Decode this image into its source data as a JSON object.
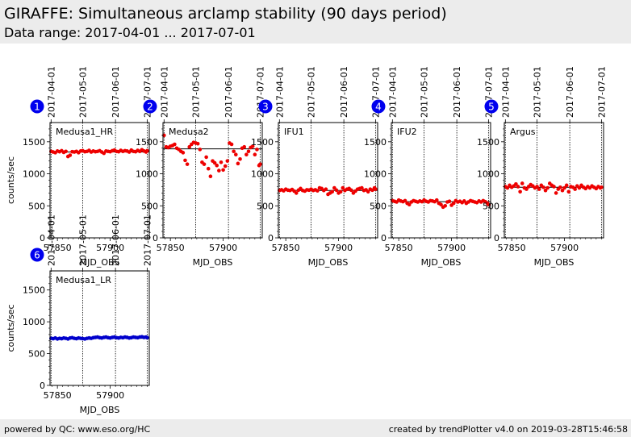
{
  "header": {
    "title": "GIRAFFE: Simultaneous arclamp stability (90 days period)",
    "subtitle": "Data range: 2017-04-01 ... 2017-07-01"
  },
  "footer": {
    "left": "powered by QC: www.eso.org/HC",
    "right": "created by trendPlotter v4.0 on 2019-03-28T15:46:58"
  },
  "colors": {
    "red": "#ee0000",
    "blue": "#0000cc",
    "badge": "#0000ee"
  },
  "chart_data": [
    {
      "type": "scatter",
      "id": 1,
      "label": "Medusa1_HR",
      "color": "red",
      "xlabel": "MJD_OBS",
      "ylabel": "counts/sec",
      "xlim": [
        57843,
        57937
      ],
      "ylim": [
        0,
        1800
      ],
      "xticks": [
        57850,
        57900
      ],
      "yticks": [
        0,
        500,
        1000,
        1500
      ],
      "date_ticks": [
        "2017-04-01",
        "2017-05-01",
        "2017-06-01",
        "2017-07-01"
      ],
      "date_ticks_mjd": [
        57844,
        57874,
        57905,
        57935
      ],
      "reference": 1340,
      "x": [
        57844,
        57846,
        57848,
        57850,
        57852,
        57854,
        57856,
        57858,
        57860,
        57862,
        57864,
        57866,
        57868,
        57870,
        57872,
        57874,
        57876,
        57878,
        57880,
        57882,
        57884,
        57886,
        57888,
        57890,
        57892,
        57894,
        57896,
        57898,
        57900,
        57902,
        57904,
        57906,
        57908,
        57910,
        57912,
        57914,
        57916,
        57918,
        57920,
        57922,
        57924,
        57926,
        57928,
        57930,
        57932,
        57934,
        57935
      ],
      "y": [
        1350,
        1340,
        1330,
        1355,
        1345,
        1360,
        1335,
        1350,
        1270,
        1290,
        1345,
        1340,
        1350,
        1330,
        1355,
        1360,
        1345,
        1350,
        1365,
        1340,
        1355,
        1345,
        1350,
        1360,
        1340,
        1320,
        1355,
        1350,
        1345,
        1360,
        1370,
        1350,
        1345,
        1365,
        1350,
        1360,
        1355,
        1340,
        1370,
        1350,
        1345,
        1365,
        1350,
        1375,
        1355,
        1340,
        1360
      ]
    },
    {
      "type": "scatter",
      "id": 2,
      "label": "Medusa2",
      "color": "red",
      "xlabel": "MJD_OBS",
      "ylabel": "",
      "xlim": [
        57843,
        57937
      ],
      "ylim": [
        0,
        1800
      ],
      "xticks": [
        57850,
        57900
      ],
      "yticks": [
        0,
        500,
        1000,
        1500
      ],
      "date_ticks": [
        "2017-04-01",
        "2017-05-01",
        "2017-06-01",
        "2017-07-01"
      ],
      "date_ticks_mjd": [
        57844,
        57874,
        57905,
        57935
      ],
      "reference": 1390,
      "x": [
        57844,
        57846,
        57848,
        57850,
        57852,
        57854,
        57856,
        57858,
        57860,
        57862,
        57864,
        57866,
        57868,
        57870,
        57872,
        57874,
        57876,
        57878,
        57880,
        57882,
        57884,
        57886,
        57888,
        57890,
        57892,
        57894,
        57896,
        57898,
        57900,
        57902,
        57904,
        57906,
        57908,
        57910,
        57912,
        57914,
        57916,
        57918,
        57920,
        57922,
        57924,
        57926,
        57928,
        57930,
        57932,
        57934,
        57935
      ],
      "y": [
        1600,
        1420,
        1410,
        1430,
        1440,
        1460,
        1400,
        1380,
        1350,
        1330,
        1210,
        1150,
        1420,
        1460,
        1490,
        1480,
        1470,
        1380,
        1180,
        1150,
        1260,
        1080,
        960,
        1200,
        1170,
        1130,
        1050,
        1180,
        1060,
        1120,
        1200,
        1480,
        1460,
        1350,
        1300,
        1160,
        1230,
        1400,
        1420,
        1300,
        1350,
        1410,
        1430,
        1300,
        1380,
        1130,
        1150
      ]
    },
    {
      "type": "scatter",
      "id": 3,
      "label": "IFU1",
      "color": "red",
      "xlabel": "MJD_OBS",
      "ylabel": "",
      "xlim": [
        57843,
        57937
      ],
      "ylim": [
        0,
        1800
      ],
      "xticks": [
        57850,
        57900
      ],
      "yticks": [
        0,
        500,
        1000,
        1500
      ],
      "date_ticks": [
        "2017-04-01",
        "2017-05-01",
        "2017-06-01",
        "2017-07-01"
      ],
      "date_ticks_mjd": [
        57844,
        57874,
        57905,
        57935
      ],
      "reference": 740,
      "x": [
        57844,
        57846,
        57848,
        57850,
        57852,
        57854,
        57856,
        57858,
        57860,
        57862,
        57864,
        57866,
        57868,
        57870,
        57872,
        57874,
        57876,
        57878,
        57880,
        57882,
        57884,
        57886,
        57888,
        57890,
        57892,
        57894,
        57896,
        57898,
        57900,
        57902,
        57904,
        57906,
        57908,
        57910,
        57912,
        57914,
        57916,
        57918,
        57920,
        57922,
        57924,
        57926,
        57928,
        57930,
        57932,
        57934,
        57935
      ],
      "y": [
        740,
        750,
        735,
        760,
        745,
        740,
        755,
        730,
        700,
        745,
        770,
        740,
        730,
        750,
        745,
        760,
        740,
        750,
        735,
        780,
        770,
        740,
        760,
        680,
        700,
        720,
        780,
        745,
        700,
        720,
        780,
        740,
        760,
        770,
        745,
        700,
        730,
        760,
        770,
        780,
        740,
        750,
        720,
        760,
        745,
        780,
        760
      ]
    },
    {
      "type": "scatter",
      "id": 4,
      "label": "IFU2",
      "color": "red",
      "xlabel": "MJD_OBS",
      "ylabel": "",
      "xlim": [
        57843,
        57937
      ],
      "ylim": [
        0,
        1800
      ],
      "xticks": [
        57850,
        57900
      ],
      "yticks": [
        0,
        500,
        1000,
        1500
      ],
      "date_ticks": [
        "2017-04-01",
        "2017-05-01",
        "2017-06-01",
        "2017-07-01"
      ],
      "date_ticks_mjd": [
        57844,
        57874,
        57905,
        57935
      ],
      "reference": 565,
      "x": [
        57844,
        57846,
        57848,
        57850,
        57852,
        57854,
        57856,
        57858,
        57860,
        57862,
        57864,
        57866,
        57868,
        57870,
        57872,
        57874,
        57876,
        57878,
        57880,
        57882,
        57884,
        57886,
        57888,
        57890,
        57892,
        57894,
        57896,
        57898,
        57900,
        57902,
        57904,
        57906,
        57908,
        57910,
        57912,
        57914,
        57916,
        57918,
        57920,
        57922,
        57924,
        57926,
        57928,
        57930,
        57932,
        57934,
        57935
      ],
      "y": [
        580,
        570,
        560,
        590,
        575,
        565,
        580,
        540,
        520,
        560,
        580,
        570,
        560,
        575,
        565,
        590,
        570,
        560,
        580,
        575,
        565,
        590,
        540,
        520,
        480,
        500,
        560,
        570,
        510,
        540,
        580,
        560,
        570,
        550,
        575,
        540,
        560,
        580,
        570,
        560,
        550,
        575,
        560,
        580,
        565,
        540,
        520
      ]
    },
    {
      "type": "scatter",
      "id": 5,
      "label": "Argus",
      "color": "red",
      "xlabel": "MJD_OBS",
      "ylabel": "",
      "xlim": [
        57843,
        57937
      ],
      "ylim": [
        0,
        1800
      ],
      "xticks": [
        57850,
        57900
      ],
      "yticks": [
        0,
        500,
        1000,
        1500
      ],
      "date_ticks": [
        "2017-04-01",
        "2017-05-01",
        "2017-06-01",
        "2017-07-01"
      ],
      "date_ticks_mjd": [
        57844,
        57874,
        57905,
        57935
      ],
      "reference": 790,
      "x": [
        57844,
        57846,
        57848,
        57850,
        57852,
        57854,
        57856,
        57858,
        57860,
        57862,
        57864,
        57866,
        57868,
        57870,
        57872,
        57874,
        57876,
        57878,
        57880,
        57882,
        57884,
        57886,
        57888,
        57890,
        57892,
        57894,
        57896,
        57898,
        57900,
        57902,
        57904,
        57906,
        57908,
        57910,
        57912,
        57914,
        57916,
        57918,
        57920,
        57922,
        57924,
        57926,
        57928,
        57930,
        57932,
        57934,
        57935
      ],
      "y": [
        800,
        780,
        820,
        790,
        810,
        840,
        800,
        720,
        850,
        780,
        760,
        800,
        830,
        810,
        780,
        800,
        760,
        820,
        790,
        740,
        780,
        850,
        820,
        800,
        700,
        760,
        790,
        740,
        780,
        820,
        720,
        800,
        790,
        760,
        810,
        780,
        820,
        790,
        770,
        800,
        780,
        810,
        790,
        770,
        800,
        780,
        790
      ]
    },
    {
      "type": "scatter",
      "id": 6,
      "label": "Medusa1_LR",
      "color": "blue",
      "xlabel": "MJD_OBS",
      "ylabel": "counts/sec",
      "xlim": [
        57843,
        57937
      ],
      "ylim": [
        0,
        1800
      ],
      "xticks": [
        57850,
        57900
      ],
      "yticks": [
        0,
        500,
        1000,
        1500
      ],
      "date_ticks": [
        "2017-04-01",
        "2017-05-01",
        "2017-06-01",
        "2017-07-01"
      ],
      "date_ticks_mjd": [
        57844,
        57874,
        57905,
        57935
      ],
      "reference": 740,
      "x": [
        57844,
        57846,
        57848,
        57850,
        57852,
        57854,
        57856,
        57858,
        57860,
        57862,
        57864,
        57866,
        57868,
        57870,
        57872,
        57874,
        57876,
        57878,
        57880,
        57882,
        57884,
        57886,
        57888,
        57890,
        57892,
        57894,
        57896,
        57898,
        57900,
        57902,
        57904,
        57906,
        57908,
        57910,
        57912,
        57914,
        57916,
        57918,
        57920,
        57922,
        57924,
        57926,
        57928,
        57930,
        57932,
        57934,
        57935
      ],
      "y": [
        740,
        735,
        745,
        730,
        740,
        735,
        745,
        740,
        730,
        745,
        750,
        740,
        735,
        745,
        740,
        735,
        730,
        740,
        745,
        740,
        750,
        755,
        760,
        750,
        745,
        755,
        760,
        750,
        745,
        755,
        760,
        750,
        745,
        755,
        750,
        760,
        755,
        745,
        750,
        760,
        755,
        750,
        760,
        765,
        755,
        760,
        750
      ]
    }
  ]
}
